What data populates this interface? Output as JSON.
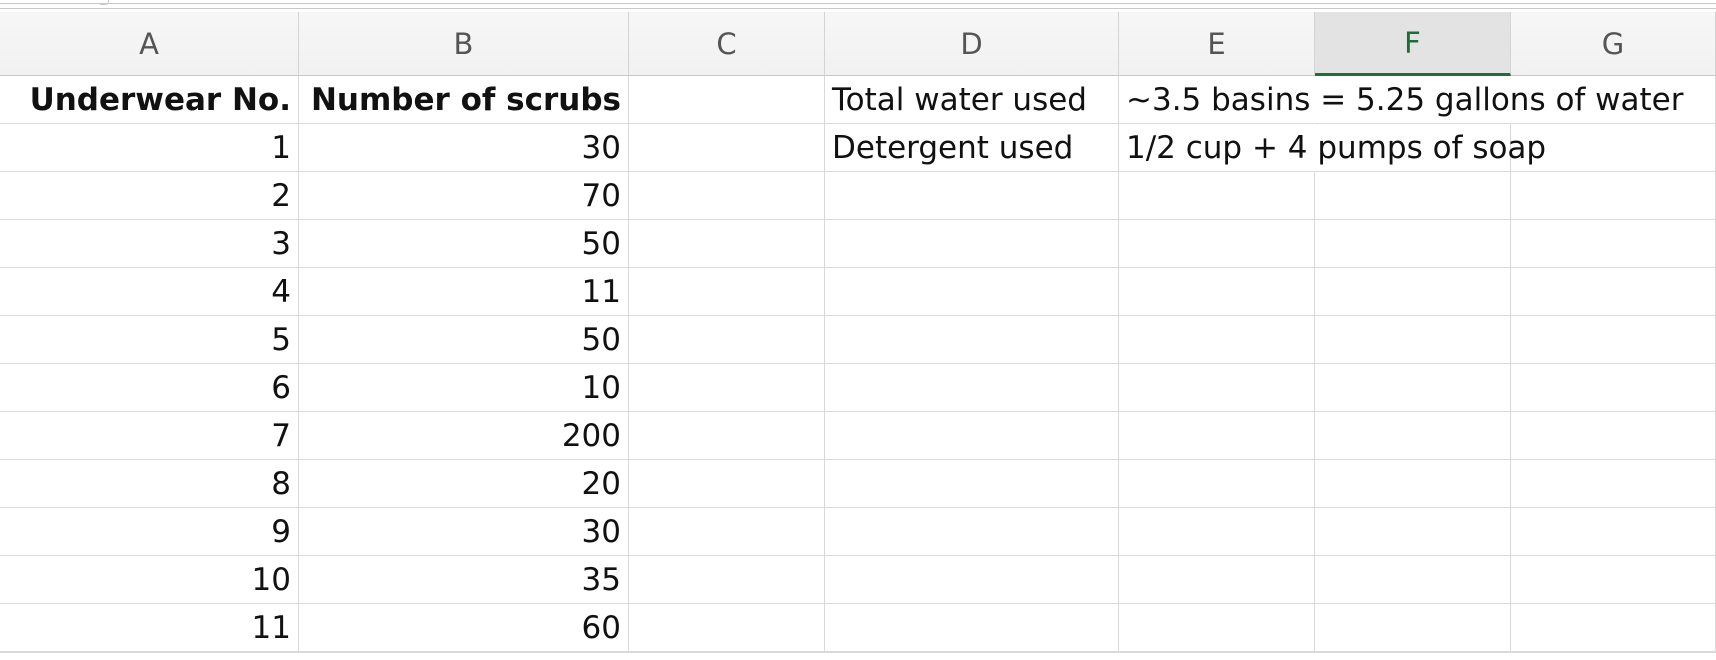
{
  "sheet": {
    "columns": [
      "A",
      "B",
      "C",
      "D",
      "E",
      "F",
      "G"
    ],
    "selected_column": "F",
    "header_row": {
      "underwear_no": "Underwear No.",
      "number_of_scrubs": "Number of scrubs"
    },
    "rows": [
      {
        "underwear_no": "1",
        "number_of_scrubs": "30"
      },
      {
        "underwear_no": "2",
        "number_of_scrubs": "70"
      },
      {
        "underwear_no": "3",
        "number_of_scrubs": "50"
      },
      {
        "underwear_no": "4",
        "number_of_scrubs": "11"
      },
      {
        "underwear_no": "5",
        "number_of_scrubs": "50"
      },
      {
        "underwear_no": "6",
        "number_of_scrubs": "10"
      },
      {
        "underwear_no": "7",
        "number_of_scrubs": "200"
      },
      {
        "underwear_no": "8",
        "number_of_scrubs": "20"
      },
      {
        "underwear_no": "9",
        "number_of_scrubs": "30"
      },
      {
        "underwear_no": "10",
        "number_of_scrubs": "35"
      },
      {
        "underwear_no": "11",
        "number_of_scrubs": "60"
      }
    ],
    "notes": [
      {
        "label": "Total water used",
        "value": "~3.5 basins = 5.25 gallons of water"
      },
      {
        "label": "Detergent used",
        "value": "1/2 cup + 4 pumps of soap"
      }
    ],
    "colors": {
      "selection_green": "#1e6e3a",
      "gridline": "#d9d9d9",
      "header_bg": "#f4f4f4"
    }
  }
}
